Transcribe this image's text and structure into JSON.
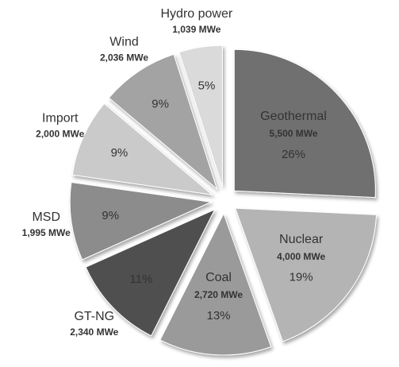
{
  "chart_data": {
    "type": "pie",
    "categories": [
      "Geothermal",
      "Nuclear",
      "Coal",
      "GT-NG",
      "MSD",
      "Import",
      "Wind",
      "Hydro power"
    ],
    "values": [
      26,
      19,
      13,
      11,
      9,
      9,
      9,
      5
    ],
    "value_labels": [
      "26%",
      "19%",
      "13%",
      "11%",
      "9%",
      "9%",
      "9%",
      "5%"
    ],
    "capacities": [
      5500,
      4000,
      2720,
      2340,
      1995,
      2000,
      2036,
      1039
    ],
    "capacity_labels": [
      "5,500 MWe",
      "4,000 MWe",
      "2,720 MWe",
      "2,340 MWe",
      "1,995 MWe",
      "2,000 MWe",
      "2,036 MWe",
      "1,039 MWe"
    ],
    "colors": [
      "#6f6f6f",
      "#b4b4b4",
      "#9a9a9a",
      "#4f4f4f",
      "#8c8c8c",
      "#cacaca",
      "#a3a3a3",
      "#dadada"
    ]
  }
}
